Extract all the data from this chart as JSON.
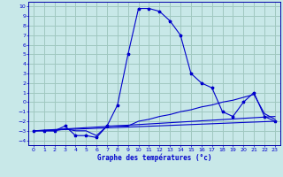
{
  "title": "Graphe des températures (°c)",
  "bg_color": "#c8e8e8",
  "grid_color": "#a0c8c0",
  "line_color": "#0000cc",
  "spine_color": "#0000aa",
  "xlim": [
    -0.5,
    23.5
  ],
  "ylim": [
    -4.5,
    10.5
  ],
  "xticks": [
    0,
    1,
    2,
    3,
    4,
    5,
    6,
    7,
    8,
    9,
    10,
    11,
    12,
    13,
    14,
    15,
    16,
    17,
    18,
    19,
    20,
    21,
    22,
    23
  ],
  "yticks": [
    -4,
    -3,
    -2,
    -1,
    0,
    1,
    2,
    3,
    4,
    5,
    6,
    7,
    8,
    9,
    10
  ],
  "series": [
    {
      "x": [
        0,
        1,
        2,
        3,
        4,
        5,
        6,
        7,
        8,
        9,
        10,
        11,
        12,
        13,
        14,
        15,
        16,
        17,
        18,
        19,
        20,
        21,
        22,
        23
      ],
      "y": [
        -3,
        -3,
        -3,
        -2.5,
        -3.5,
        -3.5,
        -3.7,
        -2.5,
        -0.3,
        5,
        9.8,
        9.8,
        9.5,
        8.5,
        7,
        3,
        2,
        1.5,
        -1,
        -1.5,
        0,
        1,
        -1.5,
        -2
      ],
      "marker": true
    },
    {
      "x": [
        0,
        23
      ],
      "y": [
        -3,
        -2
      ],
      "marker": false
    },
    {
      "x": [
        0,
        23
      ],
      "y": [
        -3,
        -1.5
      ],
      "marker": false
    },
    {
      "x": [
        0,
        1,
        2,
        3,
        4,
        5,
        6,
        7,
        8,
        9,
        10,
        11,
        12,
        13,
        14,
        15,
        16,
        17,
        18,
        19,
        20,
        21,
        22,
        23
      ],
      "y": [
        -3,
        -3,
        -3,
        -2.8,
        -3,
        -3,
        -3.5,
        -2.5,
        -2.5,
        -2.5,
        -2,
        -1.8,
        -1.5,
        -1.3,
        -1,
        -0.8,
        -0.5,
        -0.3,
        0,
        0.2,
        0.5,
        0.8,
        -1.2,
        -1.8
      ],
      "marker": false
    }
  ]
}
